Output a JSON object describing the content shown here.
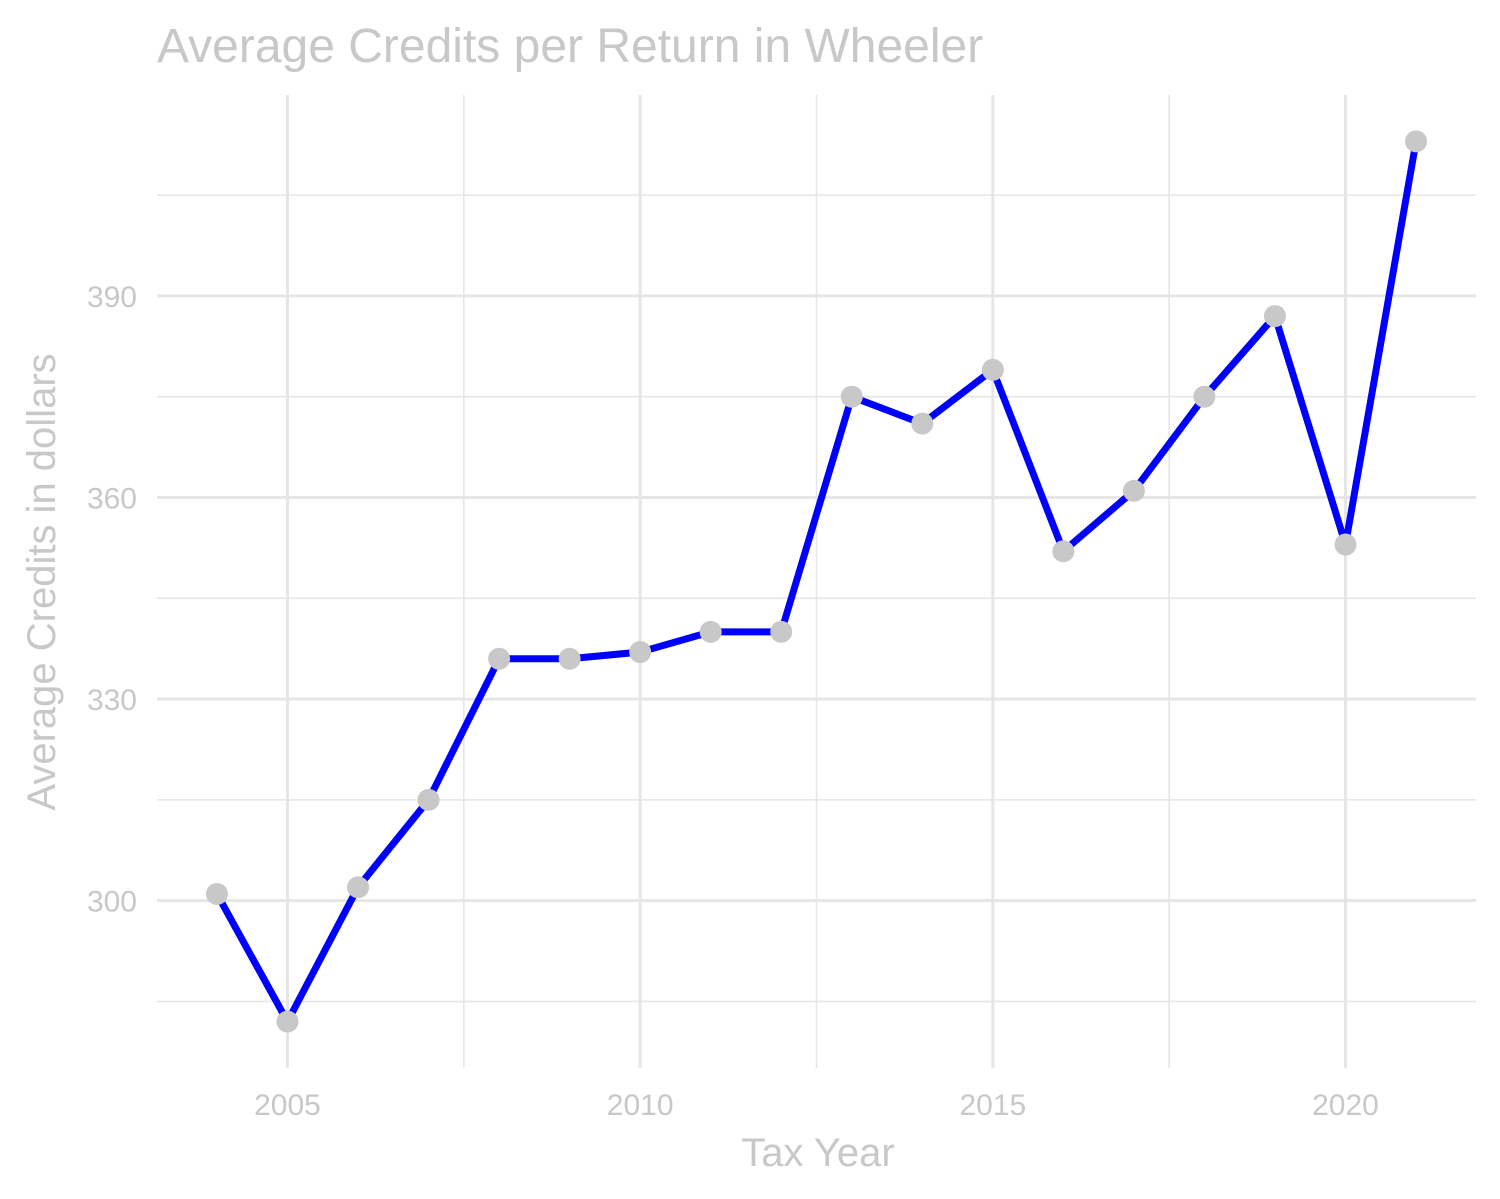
{
  "chart_data": {
    "type": "line",
    "title": "Average Credits per Return in Wheeler",
    "xlabel": "Tax Year",
    "ylabel": "Average Credits in dollars",
    "x": [
      2004,
      2005,
      2006,
      2007,
      2008,
      2009,
      2010,
      2011,
      2012,
      2013,
      2014,
      2015,
      2016,
      2017,
      2018,
      2019,
      2020,
      2021
    ],
    "series": [
      {
        "values": [
          301,
          282,
          302,
          315,
          336,
          336,
          337,
          340,
          340,
          375,
          371,
          379,
          352,
          361,
          375,
          387,
          353,
          413
        ]
      }
    ],
    "xlim": [
      2003.15,
      2021.85
    ],
    "ylim": [
      275.1,
      419.9
    ],
    "x_ticks": [
      "2005",
      "2010",
      "2015",
      "2020"
    ],
    "y_ticks": [
      "300",
      "330",
      "360",
      "390"
    ],
    "grid": true,
    "legend": "none",
    "colors": {
      "line": "#0000ff",
      "points": "#c8c8c8",
      "grid": "#e6e6e6",
      "text": "#c8c8c8"
    }
  }
}
